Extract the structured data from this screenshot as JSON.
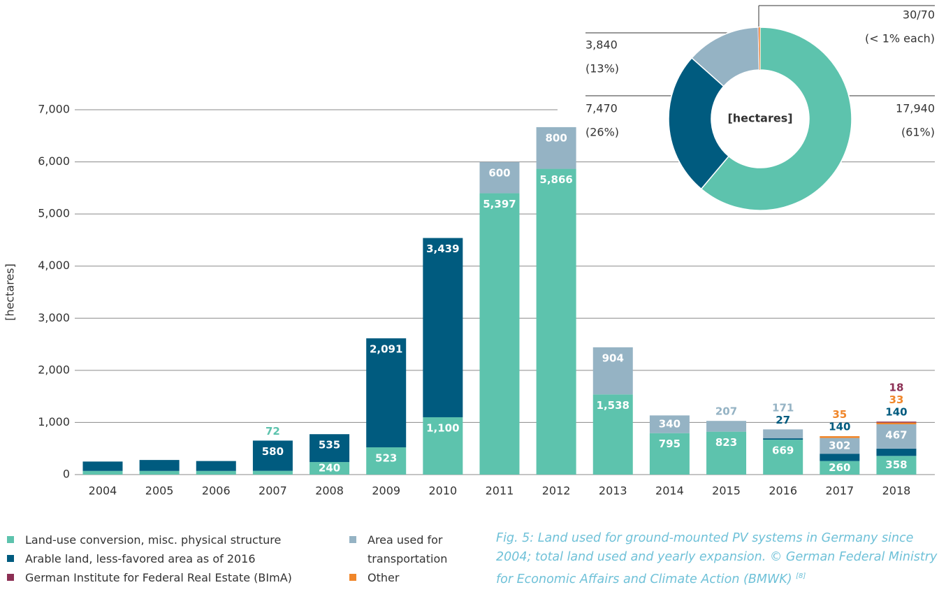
{
  "chart_data": [
    {
      "type": "bar",
      "stacked": true,
      "y_label": "[hectares]",
      "categories": [
        "2004",
        "2005",
        "2006",
        "2007",
        "2008",
        "2009",
        "2010",
        "2011",
        "2012",
        "2013",
        "2014",
        "2015",
        "2016",
        "2017",
        "2018"
      ],
      "ylim": [
        0,
        7000
      ],
      "yticks": [
        0,
        {
          "value": 1000,
          "label": "1,000"
        },
        {
          "value": 2000,
          "label": "2,000"
        },
        {
          "value": 3000,
          "label": "3,000"
        },
        {
          "value": 4000,
          "label": "4,000"
        },
        {
          "value": 5000,
          "label": "5,000"
        },
        {
          "value": 6000,
          "label": "6,000"
        },
        {
          "value": 7000,
          "label": "7,000"
        }
      ],
      "grid": true,
      "series": [
        {
          "name": "Land-use conversion, misc. physical structure",
          "color": "#5dc3ad",
          "values": [
            70,
            70,
            70,
            72,
            240,
            523,
            1100,
            5397,
            5866,
            1538,
            795,
            823,
            669,
            260,
            358
          ],
          "value_labels": [
            null,
            null,
            null,
            "72",
            "240",
            "523",
            "1,100",
            "5,397",
            "5,866",
            "1,538",
            "795",
            "823",
            "669",
            "260",
            "358"
          ]
        },
        {
          "name": "Arable land, less-favored area as of 2016",
          "color": "#005b7f",
          "values": [
            180,
            210,
            190,
            580,
            535,
            2091,
            3439,
            null,
            null,
            null,
            null,
            null,
            27,
            140,
            140
          ],
          "value_labels": [
            null,
            null,
            null,
            "580",
            "535",
            "2,091",
            "3,439",
            null,
            null,
            null,
            null,
            null,
            "27",
            "140",
            "140"
          ]
        },
        {
          "name": "Area used for transportation",
          "color": "#95b3c4",
          "values": [
            null,
            null,
            null,
            null,
            null,
            null,
            null,
            600,
            800,
            904,
            340,
            207,
            171,
            302,
            467
          ],
          "value_labels": [
            null,
            null,
            null,
            null,
            null,
            null,
            null,
            "600",
            "800",
            "904",
            "340",
            "207",
            "171",
            "302",
            "467"
          ]
        },
        {
          "name": "Other",
          "color": "#f0862a",
          "values": [
            null,
            null,
            null,
            null,
            null,
            null,
            null,
            null,
            null,
            null,
            null,
            null,
            null,
            35,
            33
          ],
          "value_labels": [
            null,
            null,
            null,
            null,
            null,
            null,
            null,
            null,
            null,
            null,
            null,
            null,
            null,
            "35",
            "33"
          ]
        },
        {
          "name": "German Institute for Federal Real Estate (BImA)",
          "color": "#8c2f54",
          "values": [
            null,
            null,
            null,
            null,
            null,
            null,
            null,
            null,
            null,
            null,
            null,
            null,
            null,
            null,
            18
          ],
          "value_labels": [
            null,
            null,
            null,
            null,
            null,
            null,
            null,
            null,
            null,
            null,
            null,
            null,
            null,
            null,
            "18"
          ]
        }
      ],
      "caption": "Fig. 5: Land used for ground-mounted PV systems in Germany since 2004; total land used and yearly expansion. © German Federal Ministry for Economic Affairs and Climate Action (BMWK)",
      "caption_ref": "[8]"
    },
    {
      "type": "pie",
      "donut": true,
      "center_label": "[hectares]",
      "values": [
        17940,
        7470,
        3840,
        30,
        70
      ],
      "colors": [
        "#5dc3ad",
        "#005b7f",
        "#95b3c4",
        "#8c2f54",
        "#f0862a"
      ],
      "callouts": [
        {
          "text": "17,940",
          "sub": "(61%)"
        },
        {
          "text": "7,470",
          "sub": "(26%)"
        },
        {
          "text": "3,840",
          "sub": "(13%)"
        },
        {
          "text": "30/70",
          "sub": "(< 1% each)"
        }
      ]
    }
  ]
}
